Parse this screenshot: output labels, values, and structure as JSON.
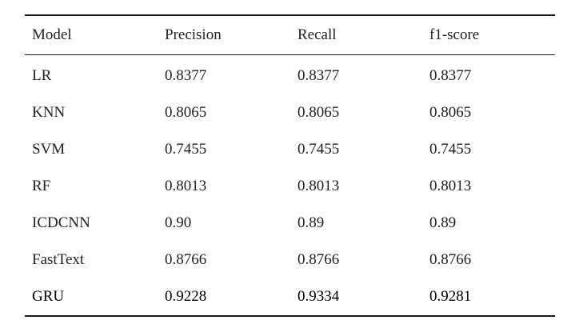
{
  "table": {
    "headers": [
      "Model",
      "Precision",
      "Recall",
      "f1-score"
    ],
    "rows": [
      [
        "LR",
        "0.8377",
        "0.8377",
        "0.8377"
      ],
      [
        "KNN",
        "0.8065",
        "0.8065",
        "0.8065"
      ],
      [
        "SVM",
        "0.7455",
        "0.7455",
        "0.7455"
      ],
      [
        "RF",
        "0.8013",
        "0.8013",
        "0.8013"
      ],
      [
        "ICDCNN",
        "0.90",
        "0.89",
        "0.89"
      ],
      [
        "FastText",
        "0.8766",
        "0.8766",
        "0.8766"
      ],
      [
        "GRU",
        "0.9228",
        "0.9334",
        "0.9281"
      ]
    ]
  }
}
